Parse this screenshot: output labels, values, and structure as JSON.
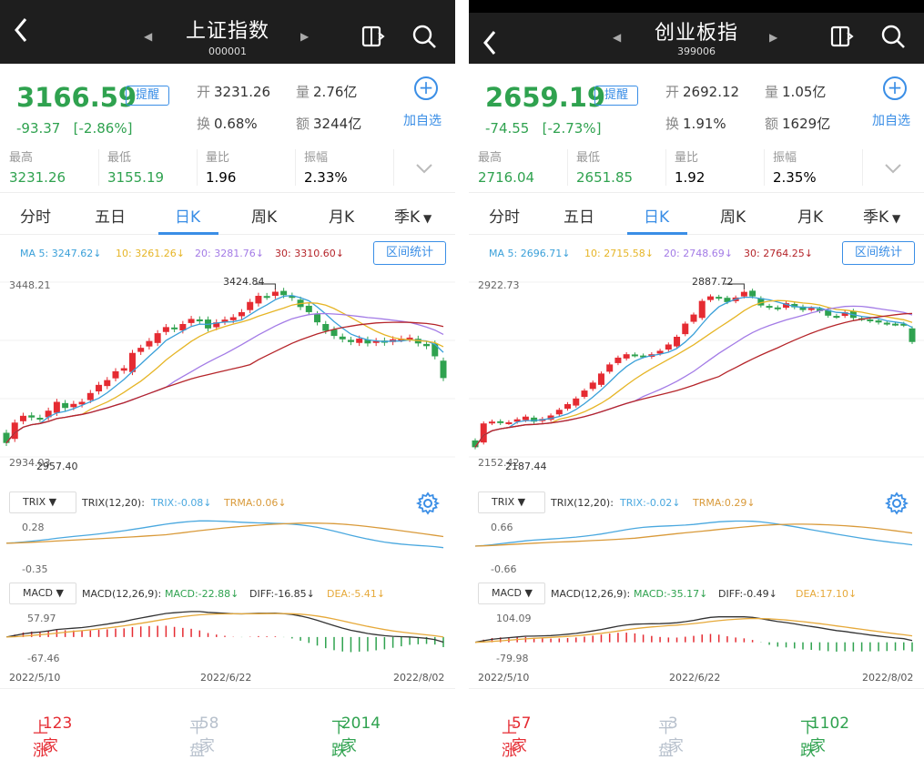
{
  "colors": {
    "up": "#e52b32",
    "down": "#2fa24f",
    "accent": "#3a8ee6",
    "ma5": "#3aa0d9",
    "ma10": "#e6b526",
    "ma20": "#a37be6",
    "ma30": "#b5252a",
    "trix": "#4aa8df",
    "trma": "#d99a3a",
    "diff": "#333333",
    "dea": "#e6a93a"
  },
  "icons": {
    "back": "chevron-left-icon",
    "prev": "triangle-left-icon",
    "next": "triangle-right-icon",
    "layout": "split-panel-icon",
    "search": "search-icon",
    "add": "plus-circle-icon",
    "expand": "chevron-down-icon",
    "dropdown": "triangle-down-icon",
    "settings": "gear-icon"
  },
  "panels": [
    {
      "title": "上证指数",
      "code": "000001",
      "price": "3166.59",
      "remind_label": "提醒",
      "change": "-93.37",
      "change_pct": "[-2.86%]",
      "open_label": "开",
      "open": "3231.26",
      "vol_label": "量",
      "vol": "2.76亿",
      "turn_label": "换",
      "turn": "0.68%",
      "amt_label": "额",
      "amt": "3244亿",
      "add_label": "加自选",
      "stats": [
        {
          "label": "最高",
          "value": "3231.26"
        },
        {
          "label": "最低",
          "value": "3155.19"
        },
        {
          "label": "量比",
          "value": "1.96"
        },
        {
          "label": "振幅",
          "value": "2.33%"
        }
      ],
      "tabs": [
        "分时",
        "五日",
        "日K",
        "周K",
        "月K",
        "季K"
      ],
      "active_tab": "日K",
      "ma": {
        "ma5": "MA 5: 3247.62↓",
        "ma10": "10: 3261.26↓",
        "ma20": "20: 3281.76↓",
        "ma30": "30: 3310.60↓"
      },
      "range_label": "区间统计",
      "axis_top": "3448.21",
      "axis_bottom": "2934.03",
      "peak_label": "3424.84",
      "trough_label": "2957.40",
      "trix_name": "TRIX",
      "trix_params": "TRIX(12,20):",
      "trix_val": "TRIX:-0.08↓",
      "trma_val": "TRMA:0.06↓",
      "trix_top": "0.28",
      "trix_bottom": "-0.35",
      "macd_name": "MACD",
      "macd_params": "MACD(12,26,9):",
      "macd_val": "MACD:-22.88↓",
      "diff_val": "DIFF:-16.85↓",
      "dea_val": "DEA:-5.41↓",
      "macd_top": "57.97",
      "macd_bottom": "-67.46",
      "dates": [
        "2022/5/10",
        "2022/6/22",
        "2022/8/02"
      ],
      "up_label": "上涨",
      "up_count": "123家",
      "flat_label": "平盘",
      "flat_count": "58家",
      "down_label": "下跌",
      "down_count": "2014家"
    },
    {
      "title": "创业板指",
      "code": "399006",
      "price": "2659.19",
      "remind_label": "提醒",
      "change": "-74.55",
      "change_pct": "[-2.73%]",
      "open_label": "开",
      "open": "2692.12",
      "vol_label": "量",
      "vol": "1.05亿",
      "turn_label": "换",
      "turn": "1.91%",
      "amt_label": "额",
      "amt": "1629亿",
      "add_label": "加自选",
      "stats": [
        {
          "label": "最高",
          "value": "2716.04"
        },
        {
          "label": "最低",
          "value": "2651.85"
        },
        {
          "label": "量比",
          "value": "1.92"
        },
        {
          "label": "振幅",
          "value": "2.35%"
        }
      ],
      "tabs": [
        "分时",
        "五日",
        "日K",
        "周K",
        "月K",
        "季K"
      ],
      "active_tab": "日K",
      "ma": {
        "ma5": "MA 5: 2696.71↓",
        "ma10": "10: 2715.58↓",
        "ma20": "20: 2748.69↓",
        "ma30": "30: 2764.25↓"
      },
      "range_label": "区间统计",
      "axis_top": "2922.73",
      "axis_bottom": "2152.42",
      "peak_label": "2887.72",
      "trough_label": "2187.44",
      "trix_name": "TRIX",
      "trix_params": "TRIX(12,20):",
      "trix_val": "TRIX:-0.02↓",
      "trma_val": "TRMA:0.29↓",
      "trix_top": "0.66",
      "trix_bottom": "-0.66",
      "macd_name": "MACD",
      "macd_params": "MACD(12,26,9):",
      "macd_val": "MACD:-35.17↓",
      "diff_val": "DIFF:-0.49↓",
      "dea_val": "DEA:17.10↓",
      "macd_top": "104.09",
      "macd_bottom": "-79.98",
      "dates": [
        "2022/5/10",
        "2022/6/22",
        "2022/8/02"
      ],
      "up_label": "上涨",
      "up_count": "57家",
      "flat_label": "平盘",
      "flat_count": "3家",
      "down_label": "下跌",
      "down_count": "1102家"
    }
  ],
  "chart_data": [
    {
      "type": "candlestick",
      "name": "上证指数",
      "date_labels": [
        "2022/5/10",
        "2022/6/22",
        "2022/8/02"
      ],
      "ylim": [
        2934.03,
        3448.21
      ],
      "closes": [
        2975,
        3035,
        3055,
        3050,
        3046,
        3070,
        3096,
        3078,
        3090,
        3096,
        3122,
        3146,
        3160,
        3186,
        3195,
        3240,
        3255,
        3275,
        3298,
        3316,
        3310,
        3325,
        3340,
        3333,
        3312,
        3330,
        3338,
        3345,
        3360,
        3390,
        3408,
        3405,
        3420,
        3410,
        3402,
        3375,
        3360,
        3330,
        3305,
        3290,
        3280,
        3272,
        3282,
        3268,
        3275,
        3270,
        3280,
        3282,
        3285,
        3268,
        3260,
        3230,
        3166
      ],
      "trix": {
        "ylim": [
          -0.35,
          0.28
        ]
      },
      "macd": {
        "ylim": [
          -67.46,
          57.97
        ]
      }
    },
    {
      "type": "candlestick",
      "name": "创业板指",
      "date_labels": [
        "2022/5/10",
        "2022/6/22",
        "2022/8/02"
      ],
      "ylim": [
        2152.42,
        2922.73
      ],
      "closes": [
        2195,
        2300,
        2308,
        2302,
        2305,
        2318,
        2330,
        2308,
        2320,
        2335,
        2360,
        2385,
        2410,
        2445,
        2480,
        2520,
        2560,
        2590,
        2605,
        2600,
        2596,
        2605,
        2620,
        2648,
        2682,
        2740,
        2780,
        2840,
        2860,
        2850,
        2835,
        2855,
        2880,
        2860,
        2820,
        2810,
        2805,
        2830,
        2812,
        2800,
        2808,
        2795,
        2775,
        2770,
        2790,
        2765,
        2760,
        2752,
        2745,
        2740,
        2738,
        2734,
        2659
      ],
      "trix": {
        "ylim": [
          -0.66,
          0.66
        ]
      },
      "macd": {
        "ylim": [
          -79.98,
          104.09
        ]
      }
    }
  ]
}
